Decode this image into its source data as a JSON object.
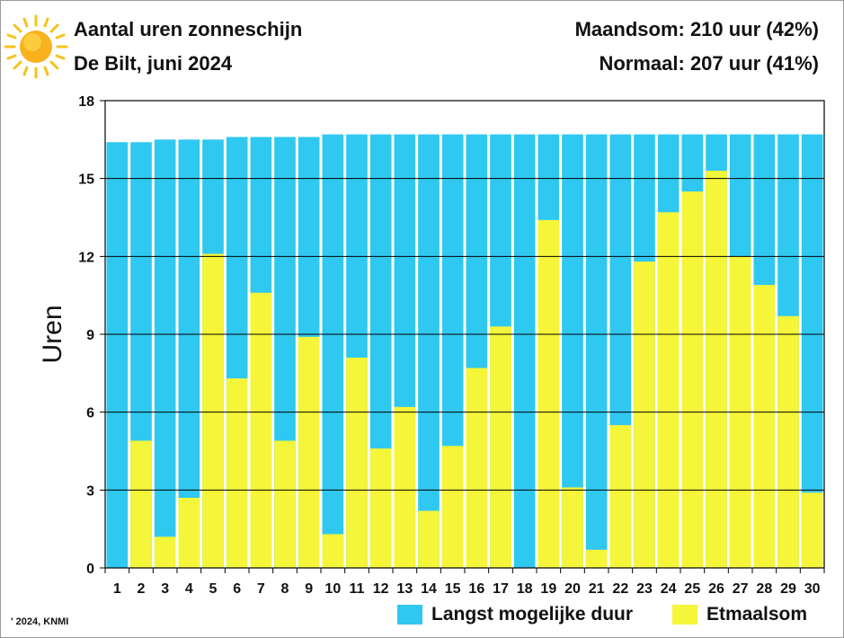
{
  "header": {
    "title": "Aantal uren zonneschijn",
    "subtitle": "De Bilt, juni 2024",
    "month_total": "Maandsom: 210 uur (42%)",
    "normal_total": "Normaal: 207 uur (41%)"
  },
  "footer": {
    "credit": "' 2024, KNMI"
  },
  "icons": {
    "sun": "sun-icon"
  },
  "colors": {
    "max_duration": "#2fc8f0",
    "daily_total": "#f5f53a",
    "grid": "#000000"
  },
  "chart_data": {
    "type": "bar",
    "ylabel": "Uren",
    "xlabel": "",
    "ylim": [
      0,
      18
    ],
    "yticks": [
      0,
      3,
      6,
      9,
      12,
      15,
      18
    ],
    "grid": true,
    "legend_position": "bottom",
    "categories": [
      "1",
      "2",
      "3",
      "4",
      "5",
      "6",
      "7",
      "8",
      "9",
      "10",
      "11",
      "12",
      "13",
      "14",
      "15",
      "16",
      "17",
      "18",
      "19",
      "20",
      "21",
      "22",
      "23",
      "24",
      "25",
      "26",
      "27",
      "28",
      "29",
      "30"
    ],
    "series": [
      {
        "name": "Langst mogelijke duur",
        "values": [
          16.4,
          16.4,
          16.5,
          16.5,
          16.5,
          16.6,
          16.6,
          16.6,
          16.6,
          16.7,
          16.7,
          16.7,
          16.7,
          16.7,
          16.7,
          16.7,
          16.7,
          16.7,
          16.7,
          16.7,
          16.7,
          16.7,
          16.7,
          16.7,
          16.7,
          16.7,
          16.7,
          16.7,
          16.7,
          16.7
        ]
      },
      {
        "name": "Etmaalsom",
        "values": [
          0.0,
          4.9,
          1.2,
          2.7,
          12.1,
          7.3,
          10.6,
          4.9,
          8.9,
          1.3,
          8.1,
          4.6,
          6.2,
          2.2,
          4.7,
          7.7,
          9.3,
          0.0,
          13.4,
          3.1,
          0.7,
          5.5,
          11.8,
          13.7,
          14.5,
          15.3,
          12.0,
          10.9,
          9.7,
          2.9
        ]
      }
    ]
  }
}
